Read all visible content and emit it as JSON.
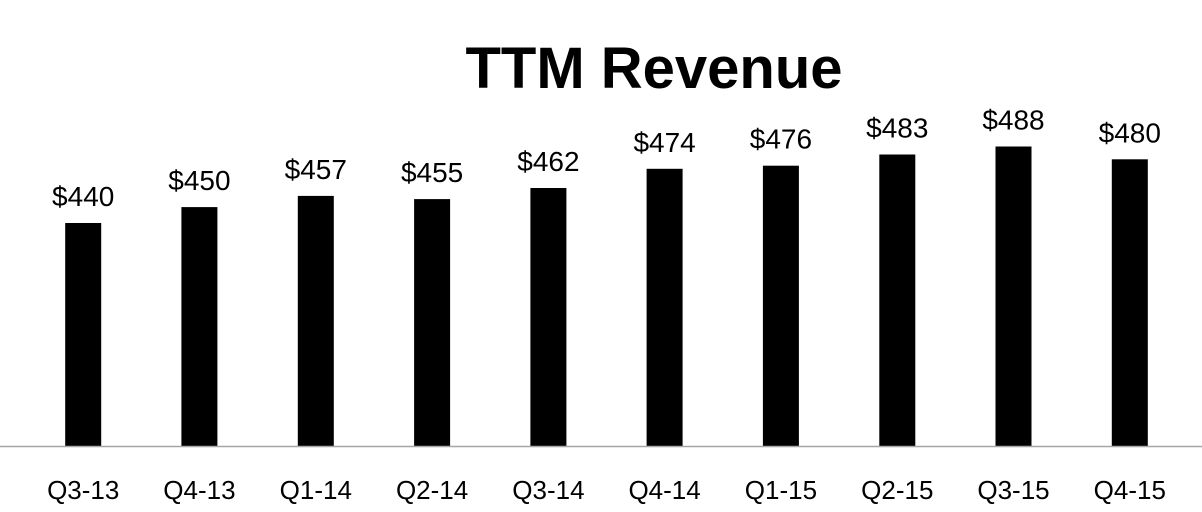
{
  "chart_data": {
    "type": "bar",
    "title": "TTM Revenue",
    "xlabel": "",
    "ylabel": "",
    "categories": [
      "Q3-13",
      "Q4-13",
      "Q1-14",
      "Q2-14",
      "Q3-14",
      "Q4-14",
      "Q1-15",
      "Q2-15",
      "Q3-15",
      "Q4-15"
    ],
    "values": [
      440,
      450,
      457,
      455,
      462,
      474,
      476,
      483,
      488,
      480
    ],
    "data_labels": [
      "$440",
      "$450",
      "$457",
      "$455",
      "$462",
      "$474",
      "$476",
      "$483",
      "$488",
      "$480"
    ],
    "ylim": [
      300,
      500
    ],
    "grid": false,
    "legend": "none",
    "bar_color": "#000000",
    "axis_color": "#a6a6a6"
  }
}
